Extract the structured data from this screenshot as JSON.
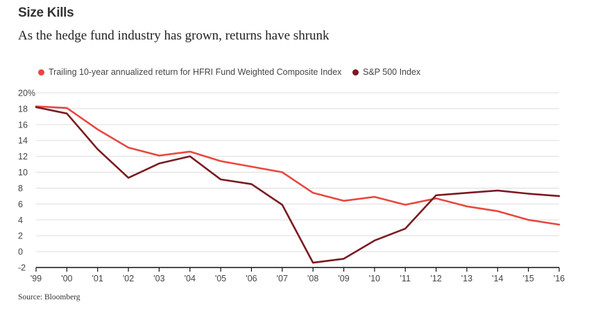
{
  "header": {
    "title": "Size Kills",
    "subtitle": "As the hedge fund industry has grown, returns have shrunk"
  },
  "source": "Source: Bloomberg",
  "chart_data": {
    "type": "line",
    "title": "Size Kills",
    "subtitle": "As the hedge fund industry has grown, returns have shrunk",
    "xlabel": "",
    "ylabel": "",
    "x": [
      "'99",
      "'00",
      "'01",
      "'02",
      "'03",
      "'04",
      "'05",
      "'06",
      "'07",
      "'08",
      "'09",
      "'10",
      "'11",
      "'12",
      "'13",
      "'14",
      "'15",
      "'16"
    ],
    "ylim": [
      -2,
      20
    ],
    "yticks": [
      -2,
      0,
      2,
      4,
      6,
      8,
      10,
      12,
      14,
      16,
      18,
      20
    ],
    "ytick_labels": [
      "-2",
      "0",
      "2",
      "4",
      "6",
      "8",
      "10",
      "12",
      "14",
      "16",
      "18",
      "20%"
    ],
    "grid": true,
    "legend_position": "top",
    "series": [
      {
        "name": "Trailing 10-year annualized return for HFRI Fund Weighted Composite Index",
        "color": "#e8473f",
        "values": [
          18.3,
          18.1,
          15.4,
          13.1,
          12.1,
          12.6,
          11.4,
          10.7,
          10.0,
          7.4,
          6.4,
          6.9,
          5.9,
          6.7,
          5.7,
          5.1,
          4.0,
          3.4
        ]
      },
      {
        "name": "S&P 500 Index",
        "color": "#7a1a20",
        "values": [
          18.2,
          17.4,
          12.9,
          9.3,
          11.1,
          12.0,
          9.1,
          8.5,
          5.9,
          -1.4,
          -0.9,
          1.4,
          2.9,
          7.1,
          7.4,
          7.7,
          7.3,
          7.0
        ]
      }
    ]
  }
}
